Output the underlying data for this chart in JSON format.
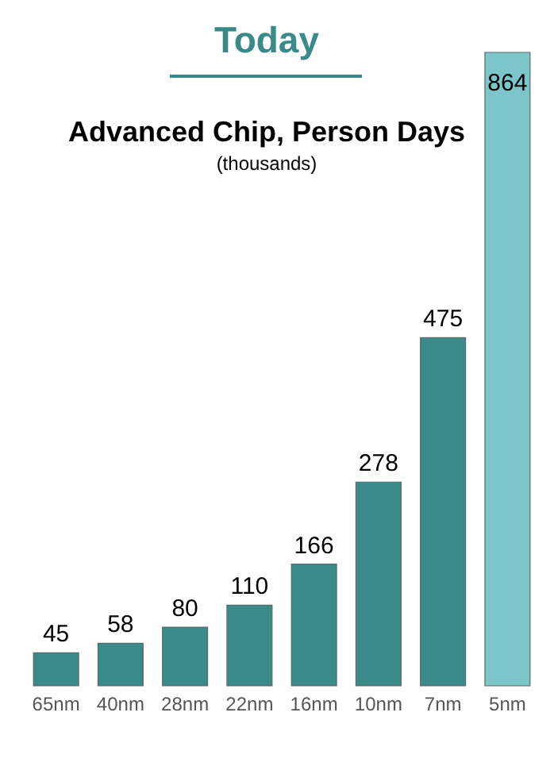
{
  "chart_data": {
    "type": "bar",
    "title": "Advanced Chip, Person Days",
    "subtitle": "(thousands)",
    "annotations": [
      "Today"
    ],
    "categories": [
      "65nm",
      "40nm",
      "28nm",
      "22nm",
      "16nm",
      "10nm",
      "7nm",
      "5nm"
    ],
    "values": [
      45,
      58,
      80,
      110,
      166,
      278,
      475,
      864
    ],
    "colors": [
      "#3a8a8a",
      "#3a8a8a",
      "#3a8a8a",
      "#3a8a8a",
      "#3a8a8a",
      "#3a8a8a",
      "#3a8a8a",
      "#7cc5c8"
    ],
    "data_labels": true
  }
}
